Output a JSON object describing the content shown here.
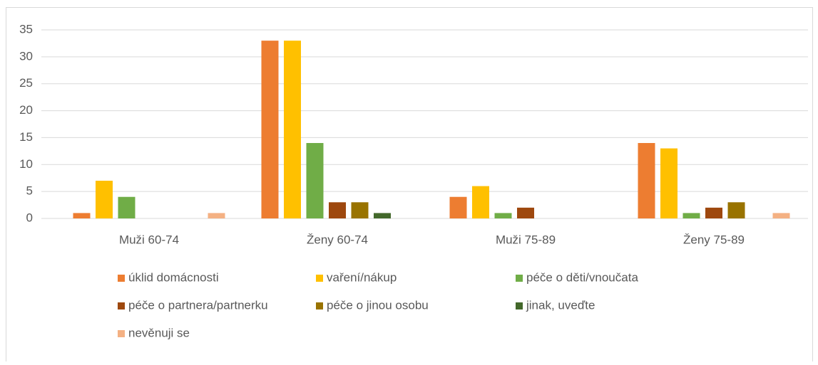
{
  "chart_data": {
    "type": "bar",
    "categories": [
      "Muži 60-74",
      "Ženy 60-74",
      "Muži 75-89",
      "Ženy 75-89"
    ],
    "series": [
      {
        "name": "úklid domácnosti",
        "color": "#ed7d31",
        "values": [
          1,
          33,
          4,
          14
        ]
      },
      {
        "name": "vaření/nákup",
        "color": "#ffc000",
        "values": [
          7,
          33,
          6,
          13
        ]
      },
      {
        "name": "péče o děti/vnoučata",
        "color": "#70ad47",
        "values": [
          4,
          14,
          1,
          1
        ]
      },
      {
        "name": "péče o partnera/partnerku",
        "color": "#9e480e",
        "values": [
          0,
          3,
          2,
          2
        ]
      },
      {
        "name": "péče o jinou osobu",
        "color": "#997300",
        "values": [
          0,
          3,
          0,
          3
        ]
      },
      {
        "name": "jinak, uveďte",
        "color": "#43682b",
        "values": [
          0,
          1,
          0,
          0
        ]
      },
      {
        "name": "nevěnuji se",
        "color": "#f4b183",
        "values": [
          1,
          0,
          0,
          1
        ]
      }
    ],
    "ylim": [
      0,
      35
    ],
    "yticks": [
      0,
      5,
      10,
      15,
      20,
      25,
      30,
      35
    ],
    "grid": true,
    "legend": "bottom"
  }
}
